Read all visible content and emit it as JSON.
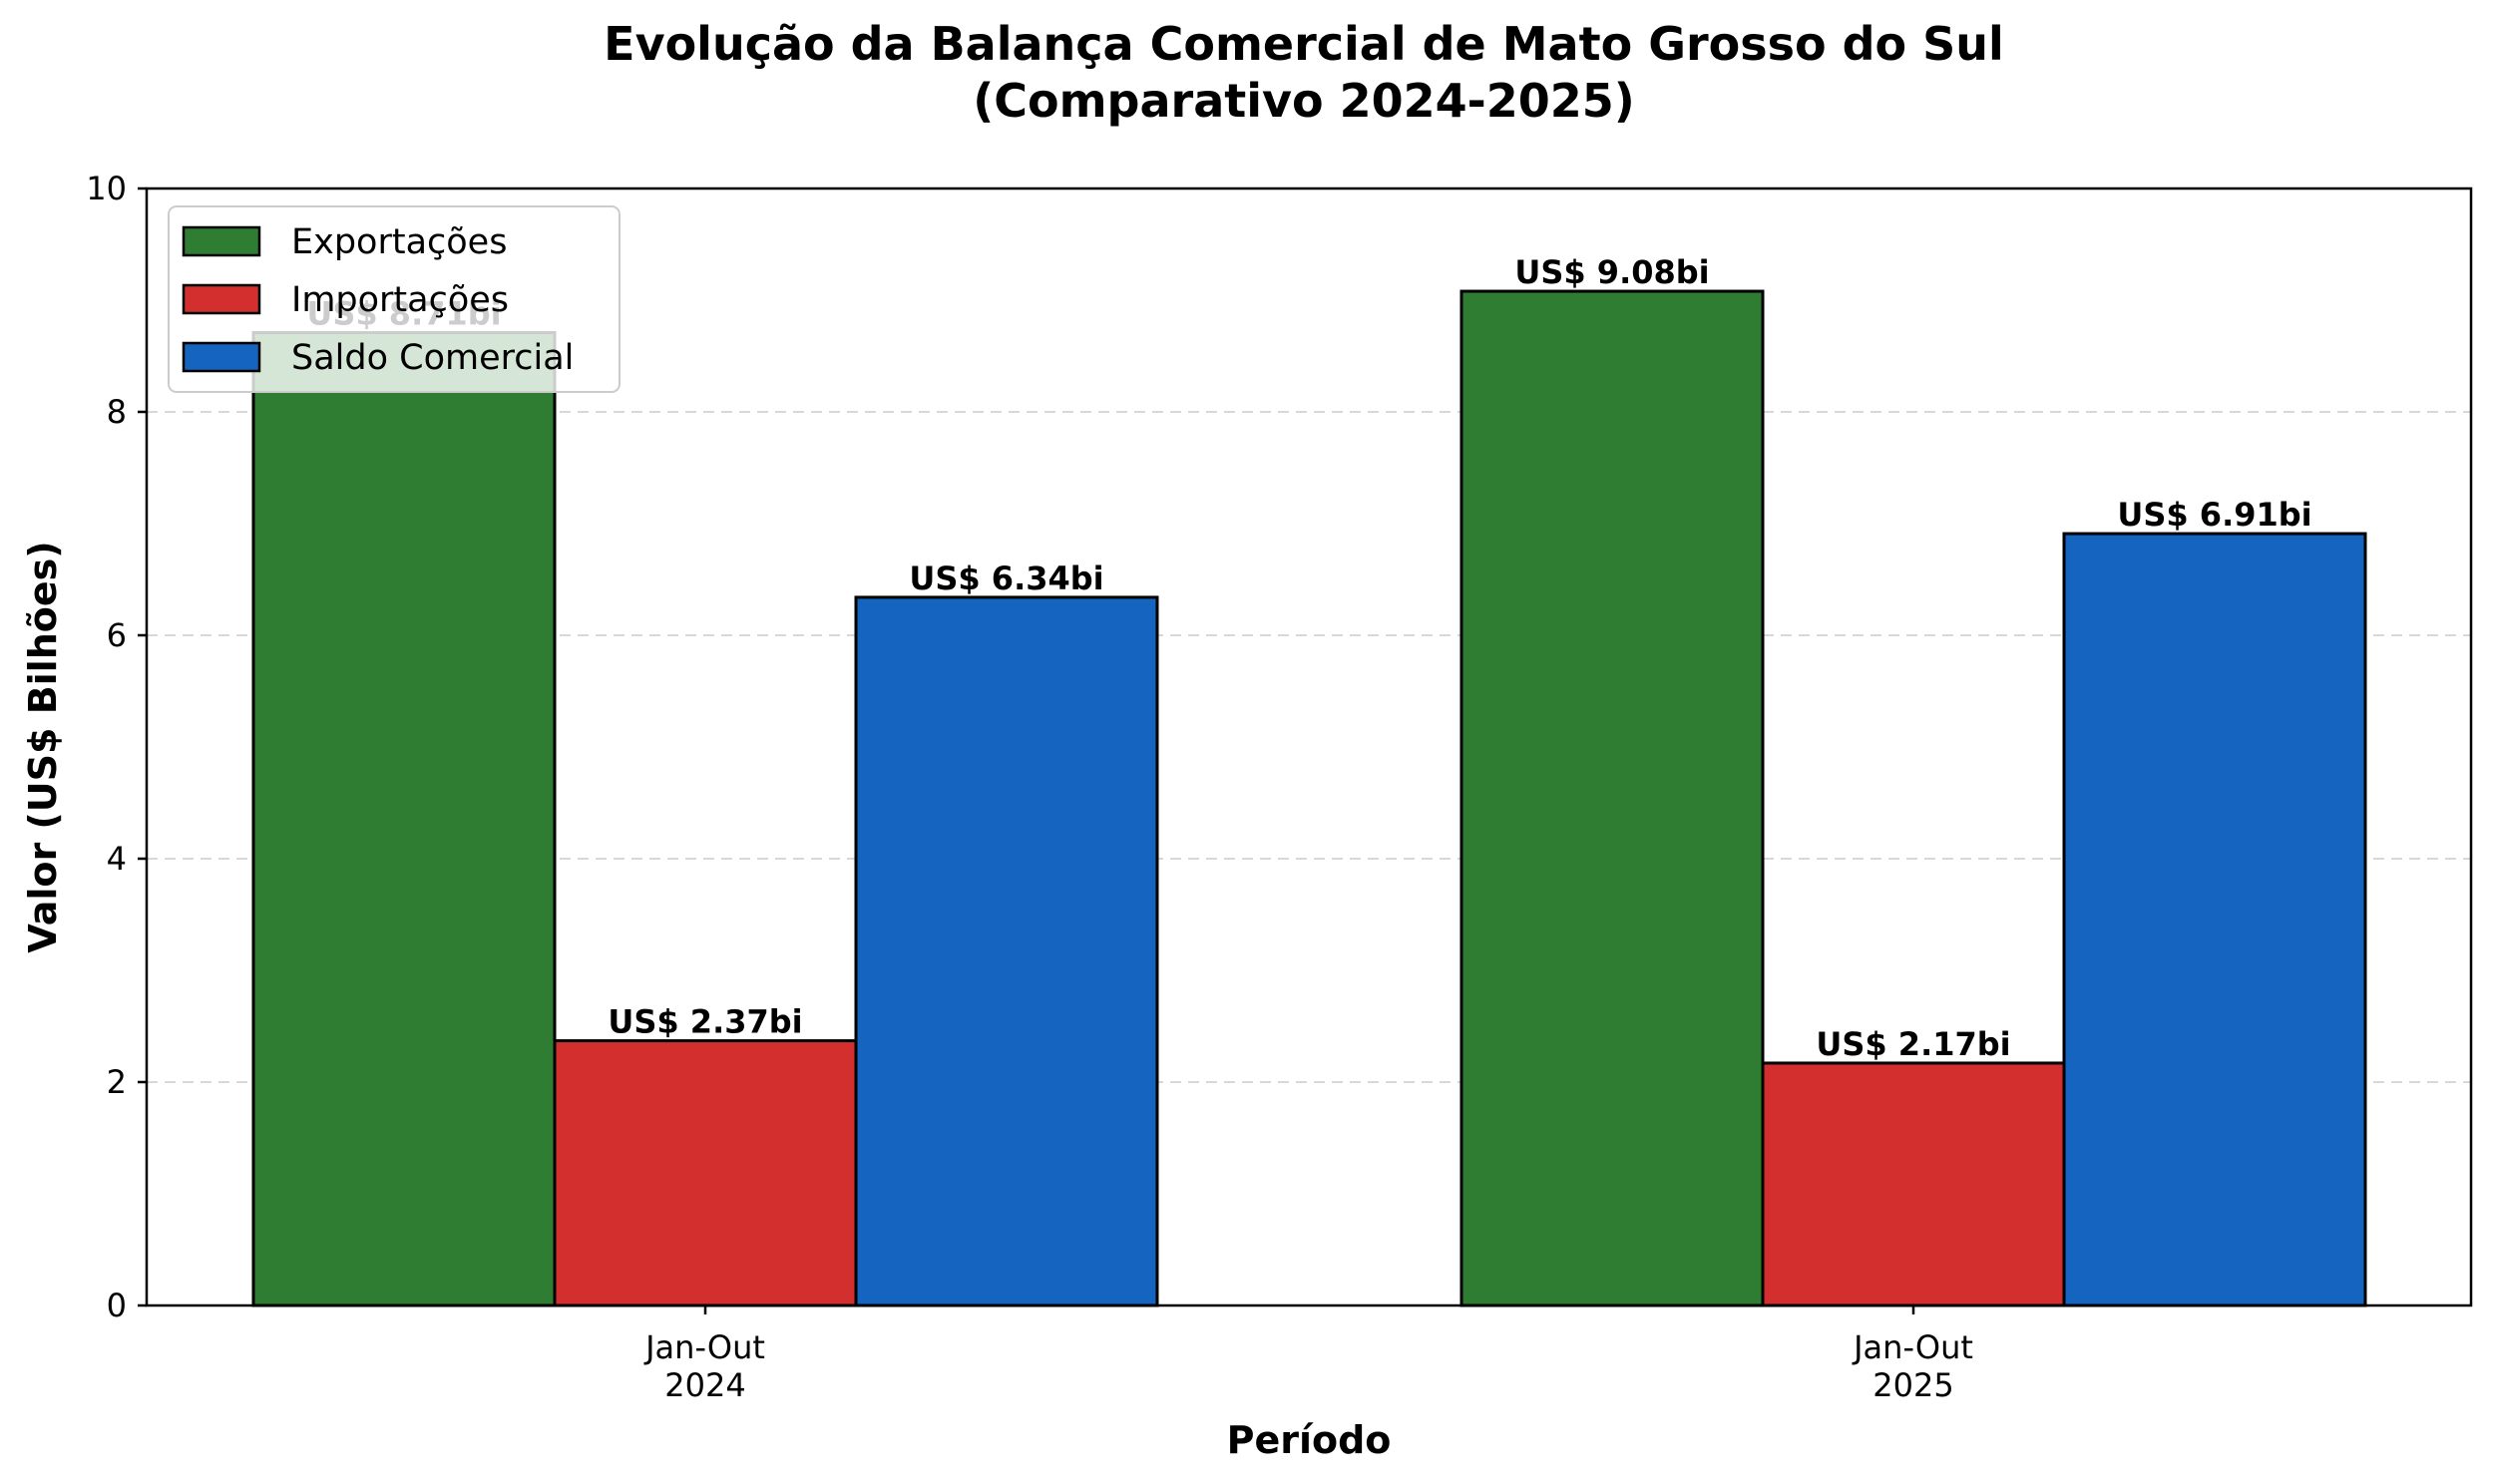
{
  "chart_data": {
    "type": "bar",
    "title": "Evolução da Balança Comercial de Mato Grosso do Sul",
    "subtitle": "(Comparativo 2024-2025)",
    "xlabel": "Período",
    "ylabel": "Valor (US$ Bilhões)",
    "categories": [
      [
        "Jan-Out",
        "2024"
      ],
      [
        "Jan-Out",
        "2025"
      ]
    ],
    "series": [
      {
        "name": "Exportações",
        "color": "#2e7d32",
        "values": [
          8.71,
          9.08
        ],
        "labels": [
          "US$ 8.71bi",
          "US$ 9.08bi"
        ]
      },
      {
        "name": "Importações",
        "color": "#d32f2f",
        "values": [
          2.37,
          2.17
        ],
        "labels": [
          "US$ 2.37bi",
          "US$ 2.17bi"
        ]
      },
      {
        "name": "Saldo Comercial",
        "color": "#1565c0",
        "values": [
          6.34,
          6.91
        ],
        "labels": [
          "US$ 6.34bi",
          "US$ 6.91bi"
        ]
      }
    ],
    "ylim": [
      0,
      10
    ],
    "yticks": [
      0,
      2,
      4,
      6,
      8,
      10
    ],
    "grid": "y-dashed",
    "legend_position": "upper-left"
  }
}
